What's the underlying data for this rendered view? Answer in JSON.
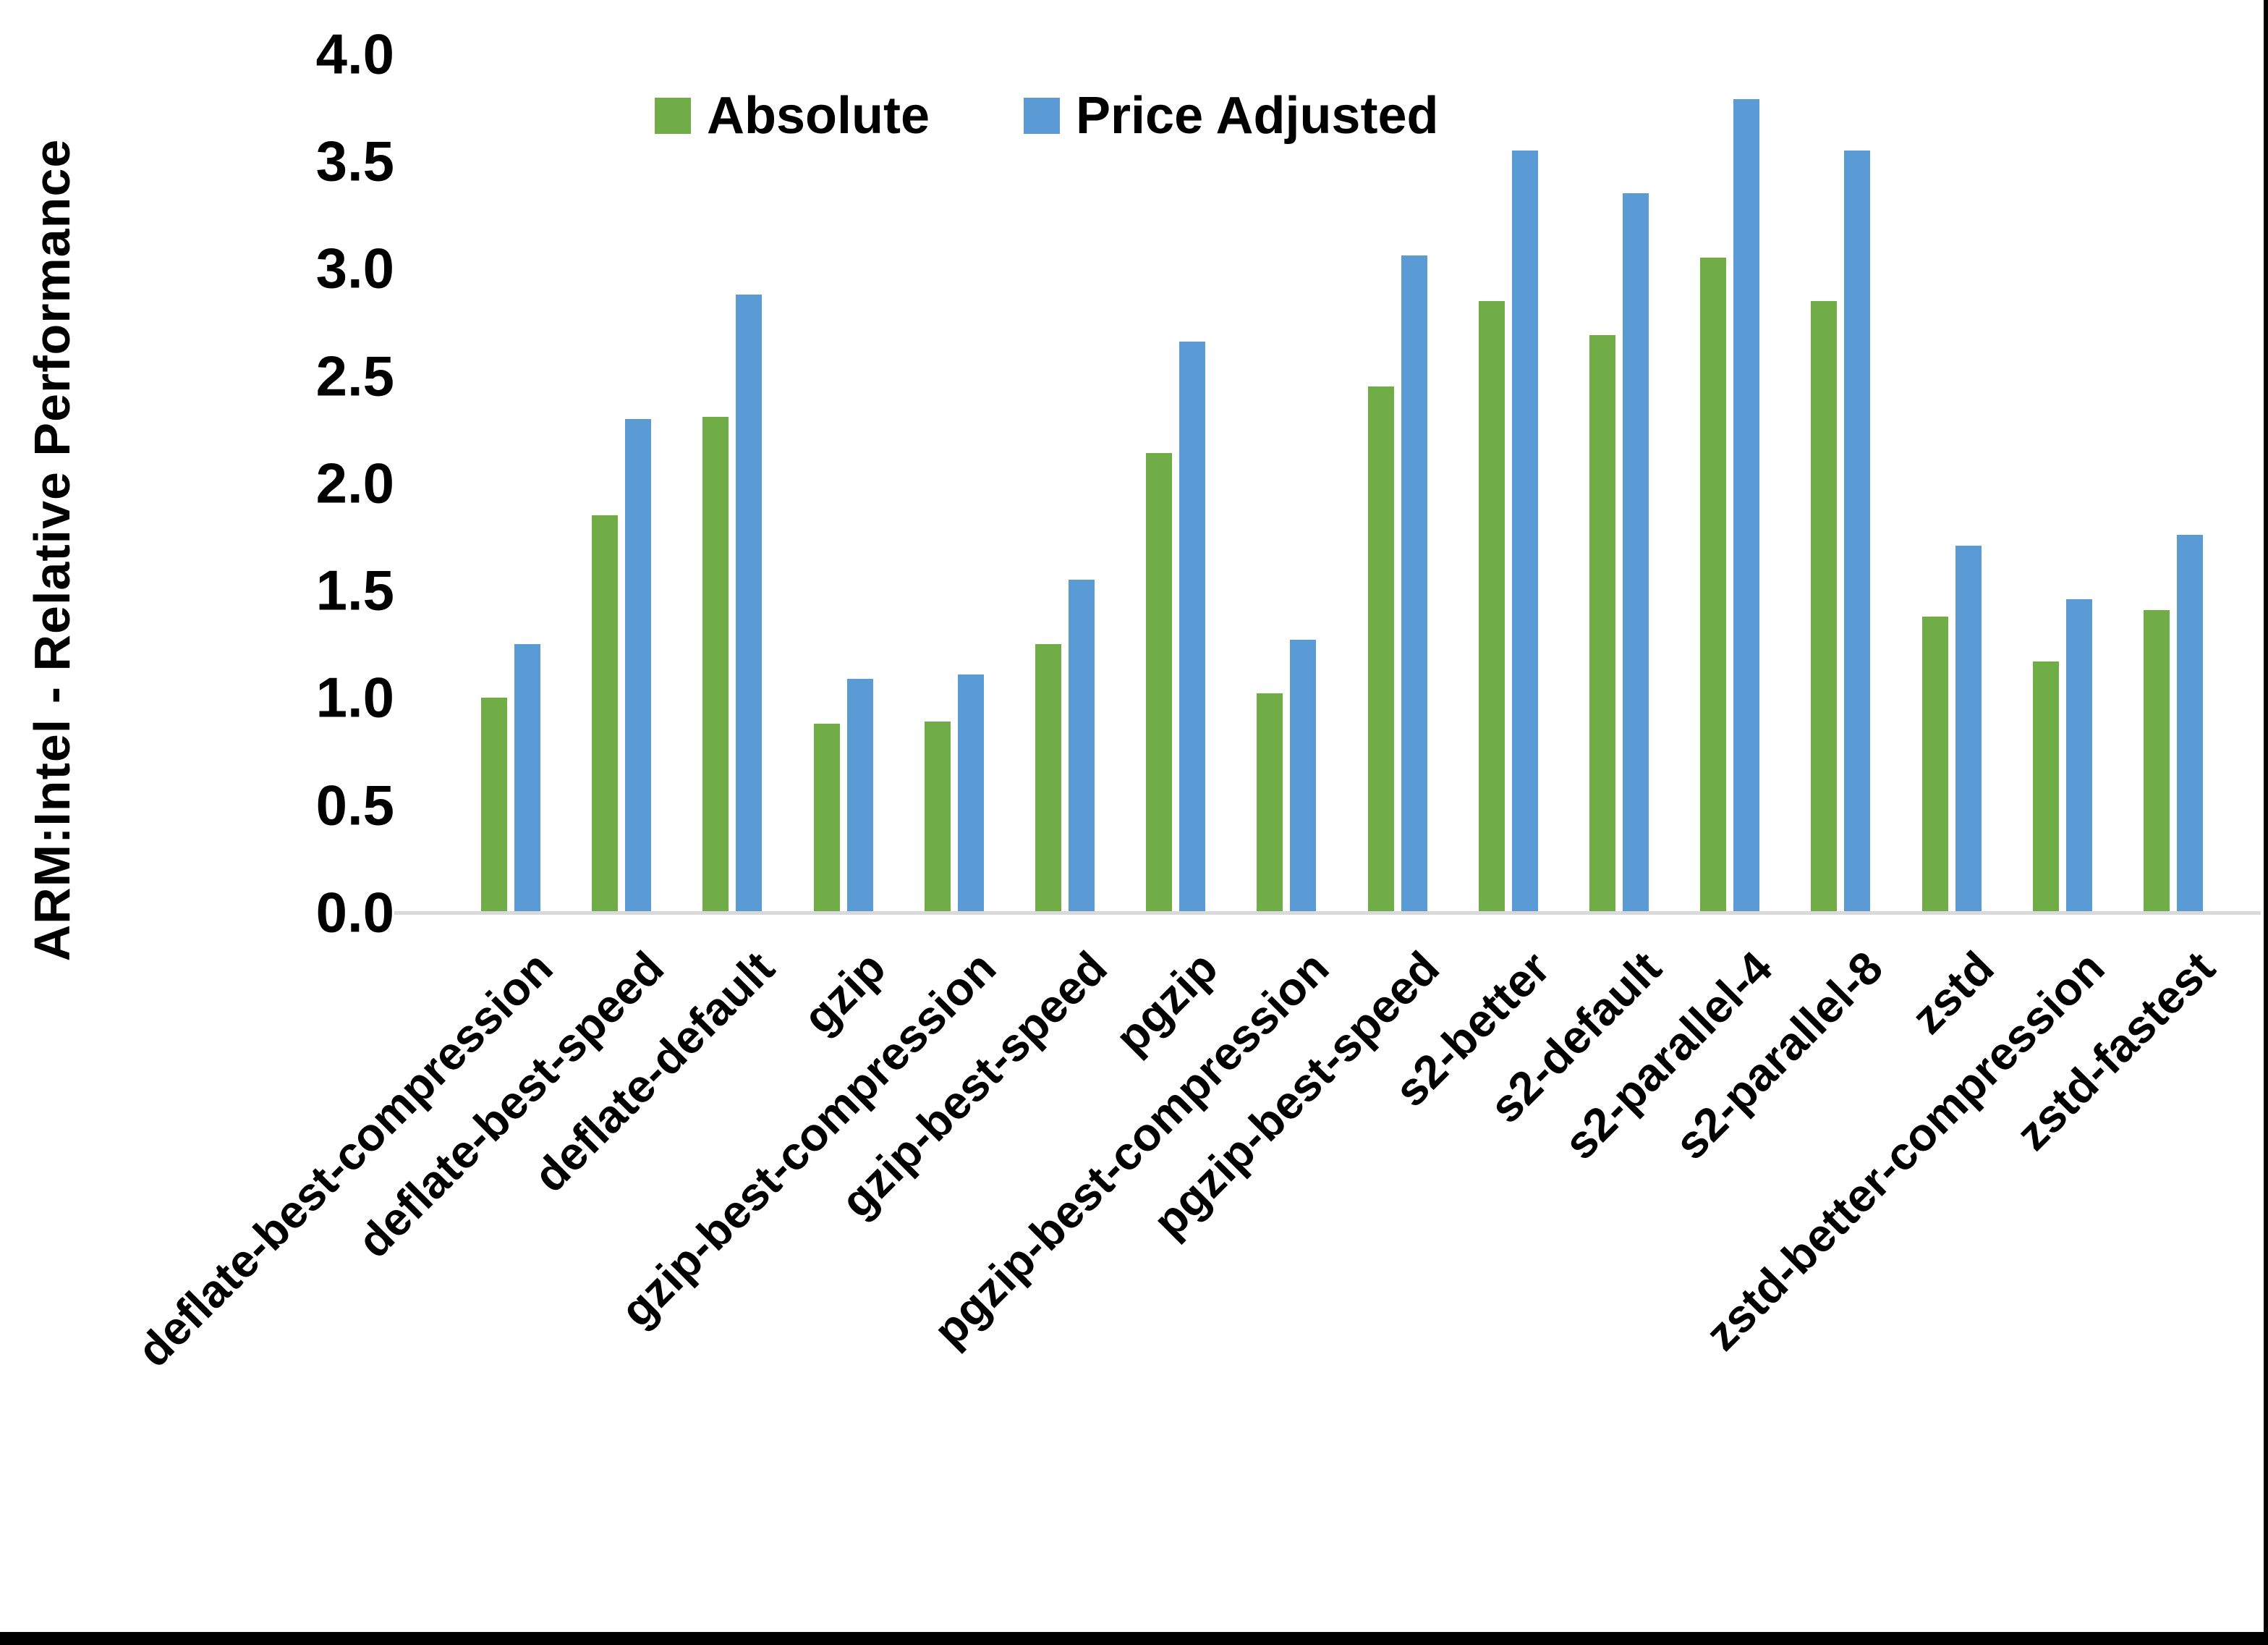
{
  "frame": {
    "right_border_color": "#000000",
    "bottom_bar_color": "#000000",
    "background_color": "#ffffff"
  },
  "axis": {
    "baseline_color": "#d9d9d9",
    "text_color": "#000000"
  },
  "legend": {
    "absolute_label": "Absolute",
    "price_adjusted_label": "Price Adjusted"
  },
  "chart_data": {
    "type": "bar",
    "title": "",
    "xlabel": "",
    "ylabel": "ARM:Intel - Relative Performance",
    "ylim": [
      0.0,
      4.0
    ],
    "ytick_step": 0.5,
    "ytick_labels": [
      "0.0",
      "0.5",
      "1.0",
      "1.5",
      "2.0",
      "2.5",
      "3.0",
      "3.5",
      "4.0"
    ],
    "grid": false,
    "legend_position": "top-center",
    "categories": [
      "deflate-best-compression",
      "deflate-best-speed",
      "deflate-default",
      "gzip",
      "gzip-best-compression",
      "gzip-best-speed",
      "pgzip",
      "pgzip-best-compression",
      "pgzip-best-speed",
      "s2-better",
      "s2-default",
      "s2-parallel-4",
      "s2-parallel-8",
      "zstd",
      "zstd-better-compression",
      "zstd-fastest"
    ],
    "series": [
      {
        "name": "Absolute",
        "color": "#70AD47",
        "values": [
          1.0,
          1.85,
          2.31,
          0.88,
          0.89,
          1.25,
          2.14,
          1.02,
          2.45,
          2.85,
          2.69,
          3.05,
          2.85,
          1.38,
          1.17,
          1.41
        ]
      },
      {
        "name": "Price Adjusted",
        "color": "#5B9BD5",
        "values": [
          1.25,
          2.3,
          2.88,
          1.09,
          1.11,
          1.55,
          2.66,
          1.27,
          3.06,
          3.55,
          3.35,
          3.79,
          3.55,
          1.71,
          1.46,
          1.76
        ]
      }
    ]
  }
}
